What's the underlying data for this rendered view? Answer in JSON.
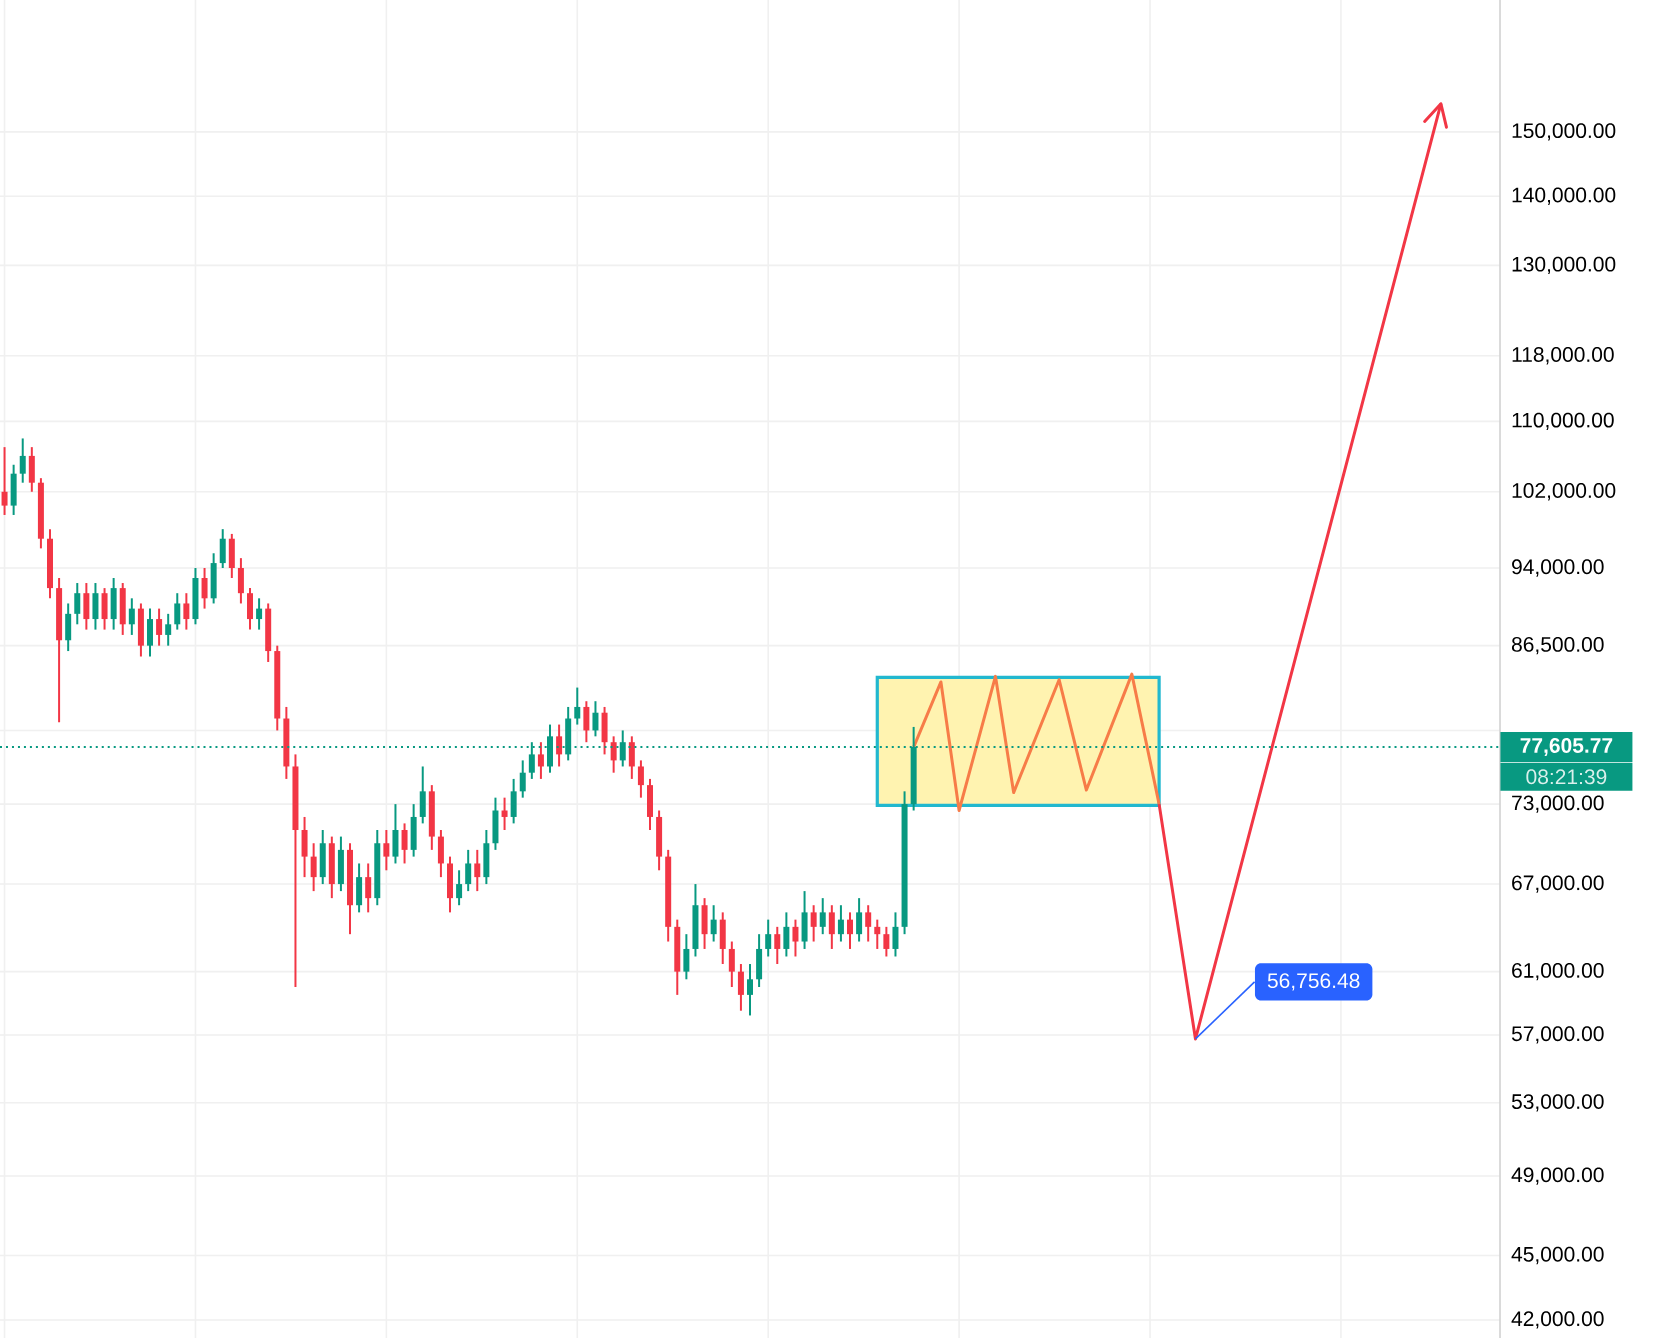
{
  "chart_data": {
    "type": "candlestick",
    "log": true,
    "grid": true,
    "colors": [
      "#f23645",
      "#089981",
      "#089981",
      "#f23645",
      "#f23645",
      "#f23645",
      "#f23645",
      "#089981",
      "#089981",
      "#f23645",
      "#089981",
      "#f23645",
      "#089981",
      "#f23645",
      "#089981",
      "#f23645",
      "#089981",
      "#f23645",
      "#089981",
      "#089981",
      "#f23645",
      "#089981",
      "#f23645",
      "#089981",
      "#089981",
      "#f23645",
      "#f23645",
      "#f23645",
      "#089981",
      "#f23645",
      "#f23645",
      "#f23645",
      "#f23645",
      "#f23645",
      "#f23645",
      "#089981",
      "#f23645",
      "#089981",
      "#f23645",
      "#089981",
      "#f23645",
      "#089981",
      "#f23645",
      "#089981",
      "#f23645",
      "#089981",
      "#089981",
      "#f23645",
      "#f23645",
      "#f23645",
      "#089981",
      "#089981",
      "#f23645",
      "#089981",
      "#089981",
      "#f23645",
      "#089981",
      "#089981",
      "#089981",
      "#f23645",
      "#089981",
      "#f23645",
      "#089981",
      "#089981",
      "#f23645",
      "#089981",
      "#f23645",
      "#f23645",
      "#089981",
      "#f23645",
      "#f23645",
      "#f23645",
      "#f23645",
      "#f23645",
      "#f23645",
      "#089981",
      "#089981",
      "#f23645",
      "#089981",
      "#f23645",
      "#f23645",
      "#f23645",
      "#089981",
      "#089981",
      "#089981",
      "#f23645",
      "#089981",
      "#f23645",
      "#089981",
      "#f23645",
      "#089981",
      "#f23645",
      "#089981",
      "#f23645",
      "#089981",
      "#f23645",
      "#f23645",
      "#f23645",
      "#089981",
      "#089981",
      "#089981",
      null,
      null,
      null,
      null,
      null,
      null,
      null,
      null,
      null,
      null,
      null,
      null,
      null,
      null,
      null,
      null,
      null,
      null,
      null,
      null,
      null,
      null,
      null,
      null,
      null,
      null,
      null,
      null,
      null,
      null,
      null,
      null,
      null,
      null,
      null,
      null,
      null,
      null,
      null,
      null,
      null,
      null,
      null,
      null,
      null,
      null,
      null,
      null,
      null,
      null,
      null,
      null,
      null,
      null,
      null,
      null,
      null,
      null,
      null,
      null,
      null,
      null,
      null,
      null
    ],
    "categories": [
      null,
      null,
      null,
      null,
      null,
      null,
      null,
      null,
      null,
      null,
      null,
      null,
      null,
      null,
      null,
      null,
      null,
      null,
      null,
      null,
      null,
      null,
      null,
      null,
      null,
      null,
      null,
      null,
      null,
      null,
      null,
      null,
      null,
      null,
      null,
      null,
      null,
      null,
      null,
      null,
      null,
      null,
      null,
      null,
      null,
      null,
      null,
      null,
      null,
      null,
      null,
      null,
      null,
      null,
      null,
      null,
      null,
      null,
      null,
      null,
      null,
      null,
      null,
      null,
      null,
      null,
      null,
      null,
      null,
      null,
      null,
      null,
      null,
      null,
      null,
      null,
      null,
      null,
      null,
      null,
      null,
      null,
      null,
      null,
      null,
      null,
      null,
      null,
      null,
      null,
      null,
      null,
      null,
      null,
      null,
      null,
      null,
      null,
      null,
      null,
      null,
      null,
      null,
      null,
      null,
      null,
      null,
      null,
      null,
      null,
      null,
      null,
      null,
      null,
      null,
      null,
      null,
      null,
      null,
      null,
      null,
      null,
      null,
      null,
      null,
      null,
      null,
      null,
      null,
      null,
      null,
      null,
      null,
      null,
      null,
      null,
      null,
      null,
      null,
      null,
      null,
      null,
      null,
      null,
      null,
      null,
      null,
      null,
      null,
      null,
      null,
      null,
      null,
      null,
      null,
      null,
      null,
      null,
      null,
      null,
      null,
      null,
      null,
      null,
      null
    ],
    "ohlc": [
      [
        102000,
        107000,
        99500,
        100500
      ],
      [
        100500,
        105000,
        99500,
        104000
      ],
      [
        104000,
        108000,
        103000,
        106000
      ],
      [
        106000,
        107000,
        102000,
        103000
      ],
      [
        103000,
        103500,
        96000,
        97000
      ],
      [
        97000,
        98000,
        91000,
        92000
      ],
      [
        92000,
        93000,
        79700,
        87000
      ],
      [
        87000,
        90500,
        86000,
        89500
      ],
      [
        89500,
        92500,
        88500,
        91500
      ],
      [
        91500,
        92500,
        88000,
        89000
      ],
      [
        89000,
        92500,
        88000,
        91500
      ],
      [
        91500,
        92000,
        88000,
        89000
      ],
      [
        89000,
        93000,
        88000,
        92000
      ],
      [
        92000,
        92500,
        87500,
        88500
      ],
      [
        88500,
        91000,
        87500,
        90000
      ],
      [
        90000,
        90500,
        85500,
        86500
      ],
      [
        86500,
        90000,
        85500,
        89000
      ],
      [
        89000,
        90000,
        86500,
        87500
      ],
      [
        87500,
        89500,
        86500,
        88500
      ],
      [
        88500,
        91500,
        88000,
        90500
      ],
      [
        90500,
        91500,
        88000,
        89000
      ],
      [
        89000,
        94000,
        88500,
        93000
      ],
      [
        93000,
        94000,
        90000,
        91000
      ],
      [
        91000,
        95500,
        90500,
        94500
      ],
      [
        94500,
        98000,
        94000,
        97000
      ],
      [
        97000,
        97500,
        93000,
        94000
      ],
      [
        94000,
        95000,
        90500,
        91500
      ],
      [
        91500,
        92000,
        88000,
        89000
      ],
      [
        89000,
        91000,
        88000,
        90000
      ],
      [
        90000,
        90500,
        85000,
        86000
      ],
      [
        86000,
        86500,
        79000,
        80000
      ],
      [
        80000,
        81000,
        75000,
        76000
      ],
      [
        76000,
        77000,
        60000,
        71000
      ],
      [
        71000,
        72000,
        67500,
        69000
      ],
      [
        69000,
        70000,
        66500,
        67500
      ],
      [
        67500,
        71000,
        67000,
        70000
      ],
      [
        70000,
        70500,
        66000,
        67000
      ],
      [
        67000,
        70500,
        66500,
        69500
      ],
      [
        69500,
        70000,
        63500,
        65500
      ],
      [
        65500,
        68500,
        65000,
        67500
      ],
      [
        67500,
        68500,
        65000,
        66000
      ],
      [
        66000,
        71000,
        65500,
        70000
      ],
      [
        70000,
        71000,
        68000,
        69000
      ],
      [
        69000,
        73000,
        68500,
        71000
      ],
      [
        71000,
        71500,
        68500,
        69500
      ],
      [
        69500,
        73000,
        69000,
        72000
      ],
      [
        72000,
        76000,
        71500,
        74000
      ],
      [
        74000,
        74500,
        69500,
        70500
      ],
      [
        70500,
        71000,
        67500,
        68500
      ],
      [
        68500,
        69000,
        65000,
        66000
      ],
      [
        66000,
        68000,
        65500,
        67000
      ],
      [
        67000,
        69500,
        66500,
        68500
      ],
      [
        68500,
        69500,
        66500,
        67500
      ],
      [
        67500,
        71000,
        67000,
        70000
      ],
      [
        70000,
        73500,
        69500,
        72500
      ],
      [
        72500,
        73500,
        71000,
        72000
      ],
      [
        72000,
        75000,
        71500,
        74000
      ],
      [
        74000,
        76500,
        73500,
        75500
      ],
      [
        75500,
        78000,
        75000,
        77000
      ],
      [
        77000,
        78000,
        75000,
        76000
      ],
      [
        76000,
        79500,
        75500,
        78500
      ],
      [
        78500,
        79500,
        76000,
        77000
      ],
      [
        77000,
        81000,
        76500,
        80000
      ],
      [
        80000,
        82700,
        79500,
        81000
      ],
      [
        81000,
        81500,
        78000,
        79000
      ],
      [
        79000,
        81500,
        78500,
        80500
      ],
      [
        80500,
        81000,
        77000,
        78000
      ],
      [
        78000,
        78500,
        75500,
        76500
      ],
      [
        76500,
        79000,
        76000,
        78000
      ],
      [
        78000,
        78500,
        75000,
        76000
      ],
      [
        76000,
        76500,
        73500,
        74500
      ],
      [
        74500,
        75000,
        71000,
        72000
      ],
      [
        72000,
        72500,
        68000,
        69000
      ],
      [
        69000,
        69500,
        63000,
        64000
      ],
      [
        64000,
        64500,
        59500,
        61000
      ],
      [
        61000,
        63500,
        60500,
        62500
      ],
      [
        62500,
        67000,
        62000,
        65500
      ],
      [
        65500,
        66000,
        62500,
        63500
      ],
      [
        63500,
        65500,
        63000,
        64500
      ],
      [
        64500,
        65000,
        61500,
        62500
      ],
      [
        62500,
        63000,
        60000,
        61000
      ],
      [
        61000,
        61500,
        58500,
        59500
      ],
      [
        59500,
        61500,
        58200,
        60500
      ],
      [
        60500,
        63500,
        60000,
        62500
      ],
      [
        62500,
        64500,
        62000,
        63500
      ],
      [
        63500,
        64000,
        61500,
        62500
      ],
      [
        62500,
        65000,
        62000,
        64000
      ],
      [
        64000,
        64500,
        62000,
        63000
      ],
      [
        63000,
        66500,
        62500,
        65000
      ],
      [
        65000,
        65500,
        63000,
        64000
      ],
      [
        64000,
        66000,
        63500,
        65000
      ],
      [
        65000,
        65500,
        62500,
        63500
      ],
      [
        63500,
        65500,
        63000,
        64500
      ],
      [
        64500,
        65000,
        62500,
        63500
      ],
      [
        63500,
        66000,
        63000,
        65000
      ],
      [
        65000,
        65500,
        63000,
        64000
      ],
      [
        64000,
        64500,
        62500,
        63500
      ],
      [
        63500,
        64000,
        62000,
        62500
      ],
      [
        62500,
        65000,
        62000,
        64000
      ],
      [
        64000,
        74000,
        63500,
        73000
      ],
      [
        73000,
        79300,
        72500,
        77605.77
      ],
      null,
      null,
      null,
      null,
      null,
      null,
      null,
      null,
      null,
      null,
      null,
      null,
      null,
      null,
      null,
      null,
      null,
      null,
      null,
      null,
      null,
      null,
      null,
      null,
      null,
      null,
      null,
      null,
      null,
      null,
      null,
      null,
      null,
      null,
      null,
      null,
      null,
      null,
      null,
      null,
      null,
      null,
      null,
      null,
      null,
      null,
      null,
      null,
      null,
      null,
      null,
      null,
      null,
      null,
      null,
      null,
      null,
      null,
      null,
      null,
      null,
      null,
      null,
      null
    ],
    "series": [
      {
        "type": "line",
        "color": "#f77c48",
        "values": [
          null,
          null,
          null,
          null,
          null,
          null,
          null,
          null,
          null,
          null,
          null,
          null,
          null,
          null,
          null,
          null,
          null,
          null,
          null,
          null,
          null,
          null,
          null,
          null,
          null,
          null,
          null,
          null,
          null,
          null,
          null,
          null,
          null,
          null,
          null,
          null,
          null,
          null,
          null,
          null,
          null,
          null,
          null,
          null,
          null,
          null,
          null,
          null,
          null,
          null,
          null,
          null,
          null,
          null,
          null,
          null,
          null,
          null,
          null,
          null,
          null,
          null,
          null,
          null,
          null,
          null,
          null,
          null,
          null,
          null,
          null,
          null,
          null,
          null,
          null,
          null,
          null,
          null,
          null,
          null,
          null,
          null,
          null,
          null,
          null,
          null,
          null,
          null,
          null,
          null,
          null,
          null,
          null,
          null,
          null,
          null,
          null,
          null,
          null,
          null,
          77600,
          null,
          null,
          83200,
          null,
          72500,
          null,
          null,
          null,
          83700,
          null,
          73900,
          null,
          null,
          null,
          null,
          83400,
          null,
          null,
          74100,
          null,
          null,
          null,
          null,
          83900,
          null,
          null,
          73000,
          null,
          null,
          null,
          null,
          null,
          null,
          null,
          null,
          null,
          null,
          null,
          null,
          null,
          null,
          null,
          null,
          null,
          null,
          null,
          null,
          null,
          null,
          null,
          null,
          null,
          null,
          null,
          null,
          null,
          null,
          null,
          null,
          null,
          null,
          null,
          null,
          null
        ],
        "lower": [
          null,
          null,
          null,
          null,
          null,
          null,
          null,
          null,
          null,
          null,
          null,
          null,
          null,
          null,
          null,
          null,
          null,
          null,
          null,
          null,
          null,
          null,
          null,
          null,
          null,
          null,
          null,
          null,
          null,
          null,
          null,
          null,
          null,
          null,
          null,
          null,
          null,
          null,
          null,
          null,
          null,
          null,
          null,
          null,
          null,
          null,
          null,
          null,
          null,
          null,
          null,
          null,
          null,
          null,
          null,
          null,
          null,
          null,
          null,
          null,
          null,
          null,
          null,
          null,
          null,
          null,
          null,
          null,
          null,
          null,
          null,
          null,
          null,
          null,
          null,
          null,
          null,
          null,
          null,
          null,
          null,
          null,
          null,
          null,
          null,
          null,
          null,
          null,
          null,
          null,
          null,
          null,
          null,
          null,
          null,
          null,
          72900,
          72900,
          72900,
          72900,
          72900,
          72900,
          72900,
          72900,
          72900,
          72900,
          72900,
          72900,
          72900,
          72900,
          72900,
          72900,
          72900,
          72900,
          72900,
          72900,
          72900,
          72900,
          72900,
          72900,
          72900,
          72900,
          72900,
          72900,
          72900,
          72900,
          72900,
          72900,
          null,
          null,
          null,
          null,
          null,
          null,
          null,
          null,
          null,
          null,
          null,
          null,
          null,
          null,
          null,
          null,
          null,
          null,
          null,
          null,
          null,
          null,
          null,
          null,
          null,
          null,
          null,
          null,
          null,
          null,
          null,
          null,
          null,
          null,
          null,
          null,
          null
        ],
        "upper": [
          null,
          null,
          null,
          null,
          null,
          null,
          null,
          null,
          null,
          null,
          null,
          null,
          null,
          null,
          null,
          null,
          null,
          null,
          null,
          null,
          null,
          null,
          null,
          null,
          null,
          null,
          null,
          null,
          null,
          null,
          null,
          null,
          null,
          null,
          null,
          null,
          null,
          null,
          null,
          null,
          null,
          null,
          null,
          null,
          null,
          null,
          null,
          null,
          null,
          null,
          null,
          null,
          null,
          null,
          null,
          null,
          null,
          null,
          null,
          null,
          null,
          null,
          null,
          null,
          null,
          null,
          null,
          null,
          null,
          null,
          null,
          null,
          null,
          null,
          null,
          null,
          null,
          null,
          null,
          null,
          null,
          null,
          null,
          null,
          null,
          null,
          null,
          null,
          null,
          null,
          null,
          null,
          null,
          null,
          null,
          null,
          83600,
          83600,
          83600,
          83600,
          83600,
          83600,
          83600,
          83600,
          83600,
          83600,
          83600,
          83600,
          83600,
          83600,
          83600,
          83600,
          83600,
          83600,
          83600,
          83600,
          83600,
          83600,
          83600,
          83600,
          83600,
          83600,
          83600,
          83600,
          83600,
          83600,
          83600,
          83600,
          null,
          null,
          null,
          null,
          null,
          null,
          null,
          null,
          null,
          null,
          null,
          null,
          null,
          null,
          null,
          null,
          null,
          null,
          null,
          null,
          null,
          null,
          null,
          null,
          null,
          null,
          null,
          null,
          null,
          null,
          null,
          null,
          null,
          null,
          null,
          null,
          null
        ]
      },
      {
        "type": "line",
        "color": "#f23645",
        "values": [
          null,
          null,
          null,
          null,
          null,
          null,
          null,
          null,
          null,
          null,
          null,
          null,
          null,
          null,
          null,
          null,
          null,
          null,
          null,
          null,
          null,
          null,
          null,
          null,
          null,
          null,
          null,
          null,
          null,
          null,
          null,
          null,
          null,
          null,
          null,
          null,
          null,
          null,
          null,
          null,
          null,
          null,
          null,
          null,
          null,
          null,
          null,
          null,
          null,
          null,
          null,
          null,
          null,
          null,
          null,
          null,
          null,
          null,
          null,
          null,
          null,
          null,
          null,
          null,
          null,
          null,
          null,
          null,
          null,
          null,
          null,
          null,
          null,
          null,
          null,
          null,
          null,
          null,
          null,
          null,
          null,
          null,
          null,
          null,
          null,
          null,
          null,
          null,
          null,
          null,
          null,
          null,
          null,
          null,
          null,
          null,
          null,
          null,
          null,
          null,
          null,
          null,
          null,
          null,
          null,
          null,
          null,
          null,
          null,
          null,
          null,
          null,
          null,
          null,
          null,
          null,
          null,
          null,
          null,
          null,
          null,
          null,
          null,
          null,
          null,
          null,
          null,
          73000,
          null,
          null,
          null,
          56756.48,
          null,
          null,
          null,
          null,
          null,
          null,
          null,
          null,
          null,
          null,
          null,
          null,
          null,
          null,
          null,
          null,
          null,
          null,
          null,
          null,
          null,
          null,
          null,
          null,
          null,
          null,
          154600,
          null,
          null,
          null,
          null,
          null,
          null
        ],
        "value_labels": [
          null,
          null,
          null,
          null,
          null,
          null,
          null,
          null,
          null,
          null,
          null,
          null,
          null,
          null,
          null,
          null,
          null,
          null,
          null,
          null,
          null,
          null,
          null,
          null,
          null,
          null,
          null,
          null,
          null,
          null,
          null,
          null,
          null,
          null,
          null,
          null,
          null,
          null,
          null,
          null,
          null,
          null,
          null,
          null,
          null,
          null,
          null,
          null,
          null,
          null,
          null,
          null,
          null,
          null,
          null,
          null,
          null,
          null,
          null,
          null,
          null,
          null,
          null,
          null,
          null,
          null,
          null,
          null,
          null,
          null,
          null,
          null,
          null,
          null,
          null,
          null,
          null,
          null,
          null,
          null,
          null,
          null,
          null,
          null,
          null,
          null,
          null,
          null,
          null,
          null,
          null,
          null,
          null,
          null,
          null,
          null,
          null,
          null,
          null,
          null,
          null,
          null,
          null,
          null,
          null,
          null,
          null,
          null,
          null,
          null,
          null,
          null,
          null,
          null,
          null,
          null,
          null,
          null,
          null,
          null,
          null,
          null,
          null,
          null,
          null,
          null,
          null,
          null,
          null,
          null,
          null,
          "56,756.48",
          null,
          null,
          null,
          null,
          null,
          null,
          null,
          null,
          null,
          null,
          null,
          null,
          null,
          null,
          null,
          null,
          null,
          null,
          null,
          null,
          null,
          null,
          null,
          null,
          null,
          null,
          null,
          null,
          null,
          null,
          null,
          null,
          null
        ]
      }
    ],
    "ylim": [
      41200,
      172800
    ],
    "yticks": [
      {
        "value": 42000,
        "label": "42,000.00"
      },
      {
        "value": 45000,
        "label": "45,000.00"
      },
      {
        "value": 49000,
        "label": "49,000.00"
      },
      {
        "value": 53000,
        "label": "53,000.00"
      },
      {
        "value": 57000,
        "label": "57,000.00"
      },
      {
        "value": 61000,
        "label": "61,000.00"
      },
      {
        "value": 67000,
        "label": "67,000.00"
      },
      {
        "value": 73000,
        "label": "73,000.00"
      },
      {
        "value": 79000,
        "label": null
      },
      {
        "value": 86500,
        "label": "86,500.00"
      },
      {
        "value": 94000,
        "label": "94,000.00"
      },
      {
        "value": 102000,
        "label": "102,000.00"
      },
      {
        "value": 110000,
        "label": "110,000.00"
      },
      {
        "value": 118000,
        "label": "118,000.00"
      },
      {
        "value": 130000,
        "label": "130,000.00"
      },
      {
        "value": 140000,
        "label": "140,000.00"
      },
      {
        "value": 150000,
        "label": "150,000.00"
      }
    ],
    "ref_lines": [
      {
        "axis": "y",
        "value": 77605.77,
        "label": "77,605.77",
        "color": "#089981",
        "line_style": "dotted"
      }
    ],
    "annotations": [
      "08:21:39"
    ]
  }
}
